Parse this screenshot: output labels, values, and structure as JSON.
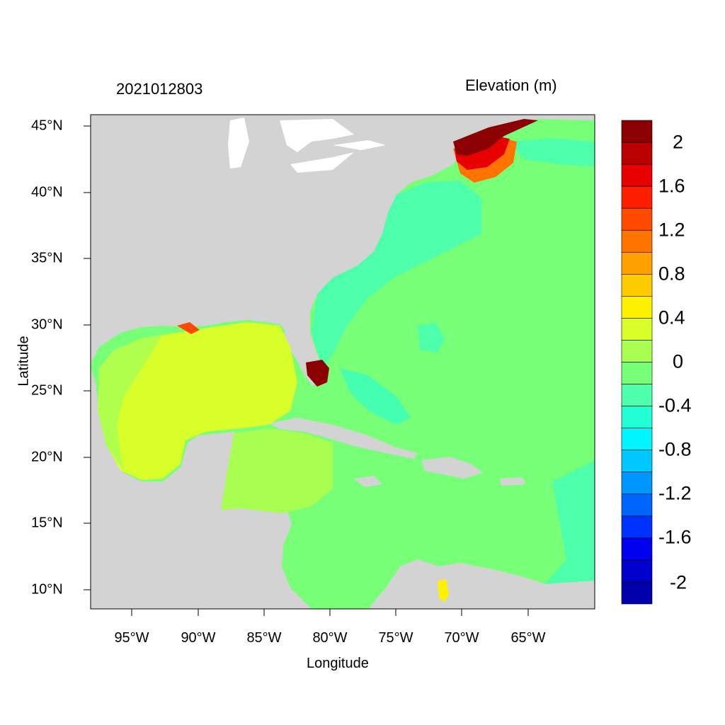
{
  "header": {
    "date_stamp": "2021012803",
    "variable": "Elevation (m)"
  },
  "axes": {
    "xlabel": "Longitude",
    "ylabel": "Latitude",
    "x_ticks": [
      "95°W",
      "90°W",
      "85°W",
      "80°W",
      "75°W",
      "70°W",
      "65°W"
    ],
    "y_ticks": [
      "45°N",
      "40°N",
      "35°N",
      "30°N",
      "25°N",
      "20°N",
      "15°N",
      "10°N"
    ]
  },
  "colorbar": {
    "labels": [
      "2",
      "1.6",
      "1.2",
      "0.8",
      "0.4",
      "0",
      "-0.4",
      "-0.8",
      "-1.2",
      "-1.6",
      "-2"
    ],
    "colors": [
      "#8b0000",
      "#bb0000",
      "#e80000",
      "#ff1e00",
      "#ff4a00",
      "#ff7300",
      "#ffa000",
      "#ffcc00",
      "#fff200",
      "#d9ff2a",
      "#a8ff52",
      "#78ff78",
      "#4dffab",
      "#22ffd4",
      "#00f5ff",
      "#00c8ff",
      "#0096ff",
      "#0064ff",
      "#0032ff",
      "#0000ee",
      "#0000cc",
      "#0000aa"
    ]
  },
  "map_colors": {
    "land": "#d3d3d3",
    "water_white": "#ffffff",
    "ocean_base": "#78ff78",
    "gulf": "#d9ff2a",
    "caribbean_west": "#a8ff52",
    "atlantic_shelf": "#4dffab",
    "surge_high": "#8b0000"
  }
}
